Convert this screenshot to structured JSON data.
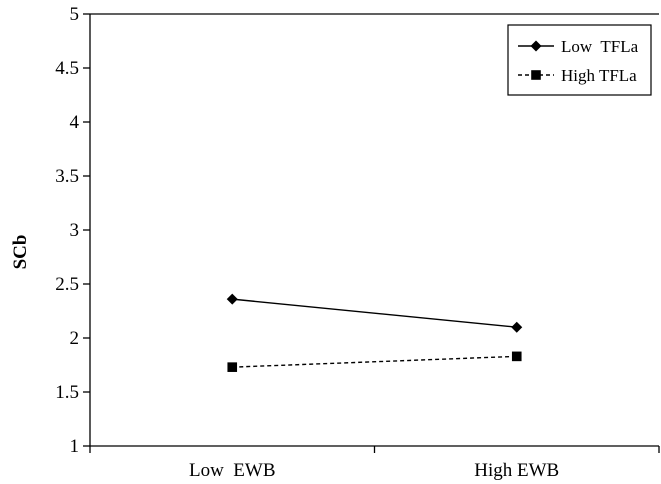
{
  "chart_data": {
    "type": "line",
    "title": "",
    "xlabel": "",
    "ylabel": "SCb",
    "categories": [
      "Low  EWB",
      "High EWB"
    ],
    "ylim": [
      1,
      5
    ],
    "yticks": [
      1,
      1.5,
      2,
      2.5,
      3,
      3.5,
      4,
      4.5,
      5
    ],
    "ytick_labels": [
      "1",
      "1.5",
      "2",
      "2.5",
      "3",
      "3.5",
      "4",
      "4.5",
      "5"
    ],
    "grid": false,
    "legend_position": "top-right",
    "series": [
      {
        "name": "Low  TFLa",
        "values": [
          2.36,
          2.1
        ],
        "line_style": "solid",
        "marker": "diamond",
        "color": "#000000"
      },
      {
        "name": "High TFLa",
        "values": [
          1.73,
          1.83
        ],
        "line_style": "dashed",
        "marker": "square",
        "color": "#000000"
      }
    ]
  }
}
